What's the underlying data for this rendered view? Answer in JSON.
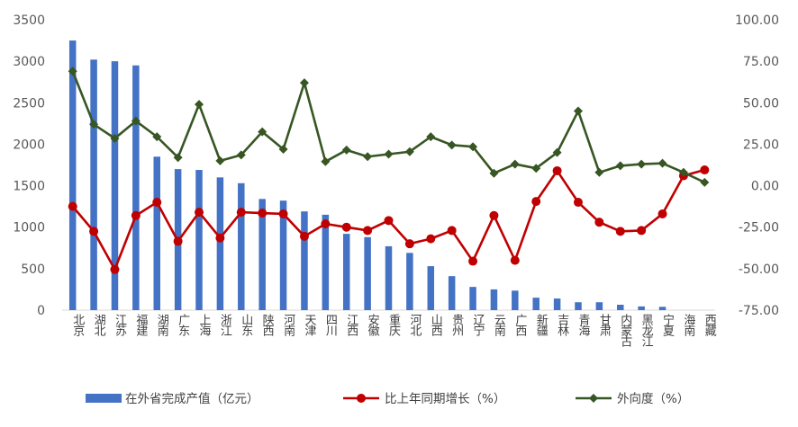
{
  "chart_data": {
    "type": "bar",
    "title": "",
    "categories": [
      "北京",
      "湖北",
      "江苏",
      "福建",
      "湖南",
      "广东",
      "上海",
      "浙江",
      "山东",
      "陕西",
      "河南",
      "天津",
      "四川",
      "江西",
      "安徽",
      "重庆",
      "河北",
      "山西",
      "贵州",
      "辽宁",
      "云南",
      "广西",
      "新疆",
      "吉林",
      "青海",
      "甘肃",
      "内蒙古",
      "黑龙江",
      "宁夏",
      "海南",
      "西藏"
    ],
    "y_left": {
      "ylim": [
        0,
        3500
      ],
      "ticks": [
        "0",
        "500",
        "1000",
        "1500",
        "2000",
        "2500",
        "3000",
        "3500"
      ]
    },
    "y_right": {
      "ylim": [
        -75,
        100
      ],
      "ticks": [
        "-75.00",
        "-50.00",
        "-25.00",
        "0.00",
        "25.00",
        "50.00",
        "75.00",
        "100.00"
      ]
    },
    "grid": false,
    "legend_position": "bottom",
    "series": [
      {
        "name": "在外省完成产值（亿元）",
        "type": "bar",
        "axis": "left",
        "color": "#4472C4",
        "values": [
          3250,
          3020,
          3000,
          2950,
          1850,
          1700,
          1690,
          1600,
          1530,
          1340,
          1320,
          1190,
          1150,
          920,
          880,
          770,
          690,
          530,
          410,
          280,
          250,
          235,
          150,
          140,
          95,
          95,
          65,
          45,
          40,
          0,
          0
        ]
      },
      {
        "name": "比上年同期增长（%）",
        "type": "line",
        "axis": "right",
        "color": "#C00000",
        "values": [
          -12.5,
          -27.5,
          -50.5,
          -18,
          -10,
          -33.5,
          -16,
          -31.5,
          -16,
          -16.5,
          -17,
          -30.5,
          -23,
          -25,
          -27,
          -21,
          -35,
          -32,
          -27,
          -45.5,
          -18,
          -45,
          -9.5,
          9,
          -10,
          -22,
          -27.5,
          -27,
          -17,
          6,
          9.5
        ]
      },
      {
        "name": "外向度（%）",
        "type": "line",
        "axis": "right",
        "color": "#375623",
        "values": [
          69,
          37,
          28.5,
          39,
          29.5,
          17,
          49,
          15,
          18.5,
          32.5,
          22,
          62,
          14.5,
          21.5,
          17.5,
          19,
          20.5,
          29.5,
          24.5,
          23.5,
          7.5,
          13,
          10.5,
          20,
          45,
          8,
          12,
          13,
          13.5,
          8,
          2
        ]
      }
    ]
  }
}
